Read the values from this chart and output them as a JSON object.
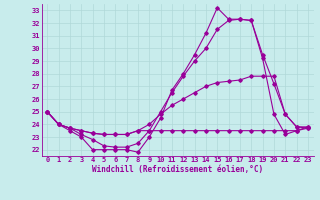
{
  "title": "",
  "xlabel": "Windchill (Refroidissement éolien,°C)",
  "ylabel": "",
  "xlim": [
    -0.5,
    23.5
  ],
  "ylim": [
    21.5,
    33.5
  ],
  "yticks": [
    22,
    23,
    24,
    25,
    26,
    27,
    28,
    29,
    30,
    31,
    32,
    33
  ],
  "xticks": [
    0,
    1,
    2,
    3,
    4,
    5,
    6,
    7,
    8,
    9,
    10,
    11,
    12,
    13,
    14,
    15,
    16,
    17,
    18,
    19,
    20,
    21,
    22,
    23
  ],
  "background_color": "#c8ecec",
  "grid_color": "#b0d8d8",
  "line_color": "#990099",
  "line_width": 0.8,
  "marker": "D",
  "marker_size": 1.8,
  "series": [
    [
      25.0,
      24.0,
      23.5,
      23.0,
      22.0,
      22.0,
      22.0,
      22.0,
      21.8,
      23.0,
      24.5,
      26.7,
      28.0,
      29.5,
      31.2,
      33.2,
      32.3,
      32.3,
      32.2,
      29.2,
      24.8,
      23.2,
      23.5,
      23.8
    ],
    [
      25.0,
      24.0,
      23.7,
      23.2,
      22.8,
      22.3,
      22.2,
      22.2,
      22.5,
      23.5,
      25.0,
      26.5,
      27.8,
      29.0,
      30.0,
      31.5,
      32.2,
      32.3,
      32.2,
      29.5,
      27.2,
      24.8,
      23.8,
      23.7
    ],
    [
      25.0,
      24.0,
      23.7,
      23.5,
      23.3,
      23.2,
      23.2,
      23.2,
      23.5,
      23.5,
      23.5,
      23.5,
      23.5,
      23.5,
      23.5,
      23.5,
      23.5,
      23.5,
      23.5,
      23.5,
      23.5,
      23.5,
      23.5,
      23.7
    ],
    [
      25.0,
      24.0,
      23.7,
      23.5,
      23.3,
      23.2,
      23.2,
      23.2,
      23.5,
      24.0,
      24.8,
      25.5,
      26.0,
      26.5,
      27.0,
      27.3,
      27.4,
      27.5,
      27.8,
      27.8,
      27.8,
      24.8,
      23.8,
      23.8
    ]
  ],
  "tick_fontsize": 5.0,
  "xlabel_fontsize": 5.5
}
